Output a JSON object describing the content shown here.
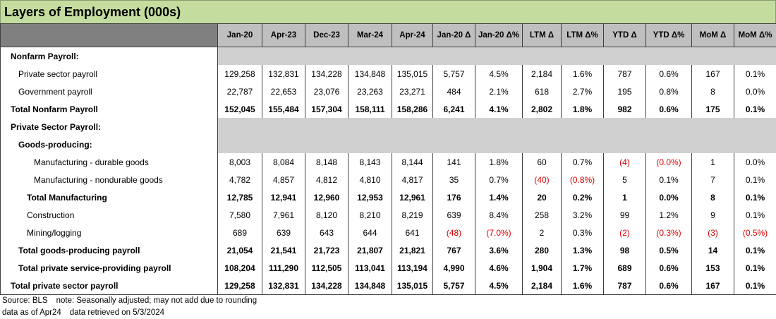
{
  "title": "Layers of Employment (000s)",
  "table": {
    "columns": [
      "Jan-20",
      "Apr-23",
      "Dec-23",
      "Mar-24",
      "Apr-24",
      "Jan-20 Δ",
      "Jan-20 Δ%",
      "LTM Δ",
      "LTM Δ%",
      "YTD Δ",
      "YTD Δ%",
      "MoM Δ",
      "MoM Δ%"
    ],
    "rows": [
      {
        "label": "Nonfarm Payroll:",
        "indent": 0,
        "bold": true
      },
      {
        "label": "Private sector payroll",
        "indent": 1,
        "bold": false,
        "values": [
          "129,258",
          "132,831",
          "134,228",
          "134,848",
          "135,015",
          "5,757",
          "4.5%",
          "2,184",
          "1.6%",
          "787",
          "0.6%",
          "167",
          "0.1%"
        ]
      },
      {
        "label": "Government payroll",
        "indent": 1,
        "bold": false,
        "values": [
          "22,787",
          "22,653",
          "23,076",
          "23,263",
          "23,271",
          "484",
          "2.1%",
          "618",
          "2.7%",
          "195",
          "0.8%",
          "8",
          "0.0%"
        ]
      },
      {
        "label": "Total Nonfarm Payroll",
        "indent": 0,
        "bold": true,
        "values": [
          "152,045",
          "155,484",
          "157,304",
          "158,111",
          "158,286",
          "6,241",
          "4.1%",
          "2,802",
          "1.8%",
          "982",
          "0.6%",
          "175",
          "0.1%"
        ]
      },
      {
        "label": "Private Sector Payroll:",
        "indent": 0,
        "bold": true
      },
      {
        "label": "Goods-producing:",
        "indent": 1,
        "bold": true
      },
      {
        "label": "Manufacturing - durable goods",
        "indent": 3,
        "bold": false,
        "values": [
          "8,003",
          "8,084",
          "8,148",
          "8,143",
          "8,144",
          "141",
          "1.8%",
          "60",
          "0.7%",
          "(4)",
          "(0.0%)",
          "1",
          "0.0%"
        ]
      },
      {
        "label": "Manufacturing - nondurable goods",
        "indent": 3,
        "bold": false,
        "values": [
          "4,782",
          "4,857",
          "4,812",
          "4,810",
          "4,817",
          "35",
          "0.7%",
          "(40)",
          "(0.8%)",
          "5",
          "0.1%",
          "7",
          "0.1%"
        ]
      },
      {
        "label": "Total Manufacturing",
        "indent": 2,
        "bold": true,
        "values": [
          "12,785",
          "12,941",
          "12,960",
          "12,953",
          "12,961",
          "176",
          "1.4%",
          "20",
          "0.2%",
          "1",
          "0.0%",
          "8",
          "0.1%"
        ]
      },
      {
        "label": "Construction",
        "indent": 2,
        "bold": false,
        "values": [
          "7,580",
          "7,961",
          "8,120",
          "8,210",
          "8,219",
          "639",
          "8.4%",
          "258",
          "3.2%",
          "99",
          "1.2%",
          "9",
          "0.1%"
        ]
      },
      {
        "label": "Mining/logging",
        "indent": 2,
        "bold": false,
        "values": [
          "689",
          "639",
          "643",
          "644",
          "641",
          "(48)",
          "(7.0%)",
          "2",
          "0.3%",
          "(2)",
          "(0.3%)",
          "(3)",
          "(0.5%)"
        ]
      },
      {
        "label": "Total goods-producing payroll",
        "indent": 1,
        "bold": true,
        "values": [
          "21,054",
          "21,541",
          "21,723",
          "21,807",
          "21,821",
          "767",
          "3.6%",
          "280",
          "1.3%",
          "98",
          "0.5%",
          "14",
          "0.1%"
        ]
      },
      {
        "label": "Total private service-providing payroll",
        "indent": 1,
        "bold": true,
        "values": [
          "108,204",
          "111,290",
          "112,505",
          "113,041",
          "113,194",
          "4,990",
          "4.6%",
          "1,904",
          "1.7%",
          "689",
          "0.6%",
          "153",
          "0.1%"
        ]
      },
      {
        "label": "Total private sector payroll",
        "indent": 0,
        "bold": true,
        "values": [
          "129,258",
          "132,831",
          "134,228",
          "134,848",
          "135,015",
          "5,757",
          "4.5%",
          "2,184",
          "1.6%",
          "787",
          "0.6%",
          "167",
          "0.1%"
        ]
      }
    ]
  },
  "footer": [
    [
      "Source: BLS",
      "note: Seasonally adjusted; may not add due to rounding"
    ],
    [
      "data as of Apr24",
      "data retrieved on 5/3/2024"
    ]
  ]
}
